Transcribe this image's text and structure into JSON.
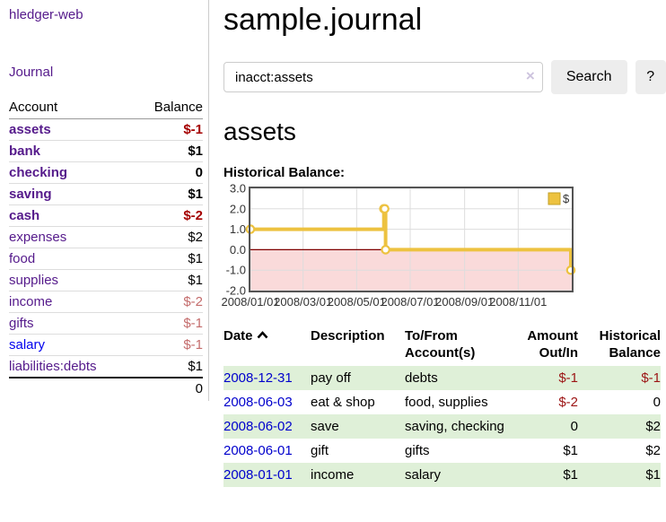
{
  "sidebar": {
    "app_title": "hledger-web",
    "journal_link": "Journal",
    "accounts_table": {
      "headers": {
        "account": "Account",
        "balance": "Balance"
      },
      "rows": [
        {
          "name": "assets",
          "balance": "$-1",
          "depth": 1,
          "bold": true,
          "balance_style": "negative-strong"
        },
        {
          "name": "bank",
          "balance": "$1",
          "depth": 2,
          "bold": true,
          "balance_style": "normal"
        },
        {
          "name": "checking",
          "balance": "0",
          "depth": 3,
          "bold": true,
          "balance_style": "normal"
        },
        {
          "name": "saving",
          "balance": "$1",
          "depth": 3,
          "bold": true,
          "balance_style": "normal"
        },
        {
          "name": "cash",
          "balance": "$-2",
          "depth": 2,
          "bold": true,
          "balance_style": "negative-strong"
        },
        {
          "name": "expenses",
          "balance": "$2",
          "depth": 1,
          "bold": false,
          "balance_style": "normal"
        },
        {
          "name": "food",
          "balance": "$1",
          "depth": 2,
          "bold": false,
          "balance_style": "normal"
        },
        {
          "name": "supplies",
          "balance": "$1",
          "depth": 2,
          "bold": false,
          "balance_style": "normal"
        },
        {
          "name": "income",
          "balance": "$-2",
          "depth": 1,
          "bold": false,
          "balance_style": "negative-faded"
        },
        {
          "name": "gifts",
          "balance": "$-1",
          "depth": 2,
          "bold": false,
          "balance_style": "negative-faded"
        },
        {
          "name": "salary",
          "balance": "$-1",
          "depth": 2,
          "bold": false,
          "balance_style": "negative-faded",
          "link_color": "blue"
        },
        {
          "name": "liabilities:debts",
          "balance": "$1",
          "depth": 1,
          "bold": false,
          "balance_style": "normal"
        }
      ],
      "total": "0"
    }
  },
  "main": {
    "title": "sample.journal",
    "search": {
      "value": "inacct:assets",
      "clear_icon": "×",
      "button_label": "Search",
      "help_label": "?"
    },
    "account_heading": "assets",
    "chart_label": "Historical Balance:"
  },
  "chart_data": {
    "type": "line",
    "title": "Historical Balance",
    "step": true,
    "series": [
      {
        "name": "$",
        "color": "#edc240",
        "points": [
          [
            "2008-01-01",
            1
          ],
          [
            "2008-06-01",
            2
          ],
          [
            "2008-06-02",
            2
          ],
          [
            "2008-06-03",
            0
          ],
          [
            "2008-12-31",
            -1
          ]
        ]
      }
    ],
    "ylim": [
      -2,
      3
    ],
    "yticks": [
      "3.0",
      "2.0",
      "1.0",
      "0.0",
      "-1.0",
      "-2.0"
    ],
    "ytick_values": [
      3,
      2,
      1,
      0,
      -1,
      -2
    ],
    "xticks": [
      "2008/01/01",
      "2008/03/01",
      "2008/05/01",
      "2008/07/01",
      "2008/09/01",
      "2008/11/01"
    ],
    "x_start": "2008-01-01",
    "x_span_days": 365,
    "legend": "$",
    "legend_position": "top-right",
    "grid": true,
    "colors": {
      "line": "#edc240",
      "marker_fill": "#ffffff",
      "negative_region": "#fadada",
      "zero_line": "#800000",
      "grid_line": "#dddddd",
      "border": "#545454",
      "legend_box_border": "#c2a029",
      "tick_text": "#333333"
    }
  },
  "register": {
    "headers": {
      "date": "Date",
      "description": "Description",
      "accounts": "To/From Account(s)",
      "amount": "Amount Out/In",
      "balance": "Historical Balance"
    },
    "sort_icon": "chevron-up",
    "rows": [
      {
        "date": "2008-12-31",
        "description": "pay off",
        "accounts": "debts",
        "amount": "$-1",
        "balance": "$-1"
      },
      {
        "date": "2008-06-03",
        "description": "eat & shop",
        "accounts": "food, supplies",
        "amount": "$-2",
        "balance": "0"
      },
      {
        "date": "2008-06-02",
        "description": "save",
        "accounts": "saving, checking",
        "amount": "0",
        "balance": "$2"
      },
      {
        "date": "2008-06-01",
        "description": "gift",
        "accounts": "gifts",
        "amount": "$1",
        "balance": "$2"
      },
      {
        "date": "2008-01-01",
        "description": "income",
        "accounts": "salary",
        "amount": "$1",
        "balance": "$1"
      }
    ]
  }
}
